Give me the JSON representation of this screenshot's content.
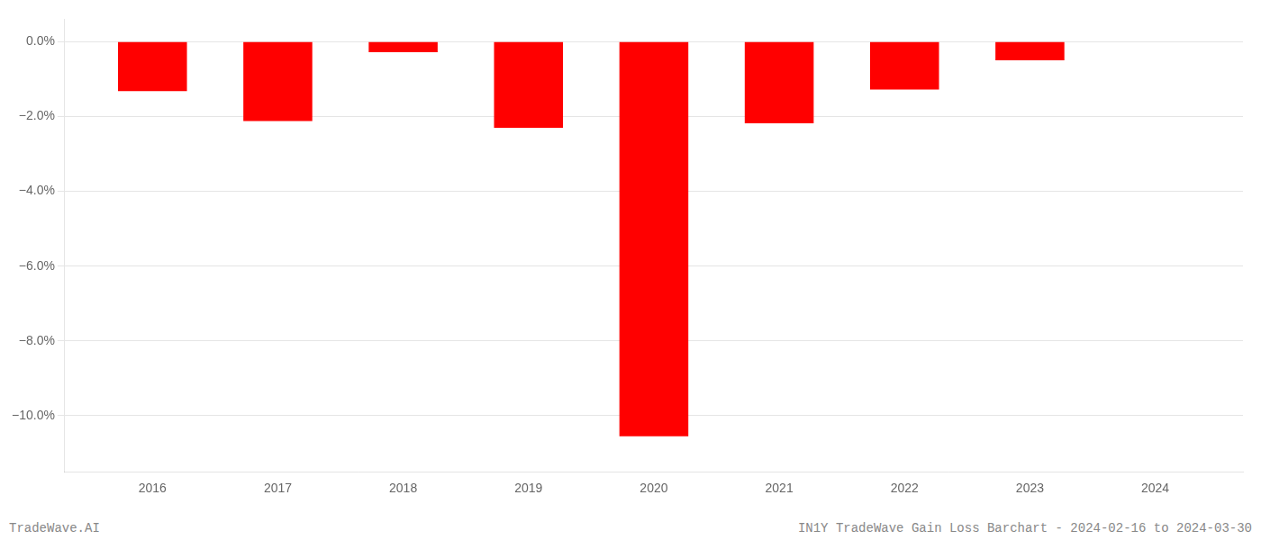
{
  "chart_data": {
    "type": "bar",
    "x": [
      2016,
      2017,
      2018,
      2019,
      2020,
      2021,
      2022,
      2023
    ],
    "values": [
      -1.32,
      -2.12,
      -0.28,
      -2.3,
      -10.55,
      -2.18,
      -1.28,
      -0.5
    ],
    "color": "#ff0000",
    "xlim": [
      2015.3,
      2024.7
    ],
    "xticks": [
      2016,
      2017,
      2018,
      2019,
      2020,
      2021,
      2022,
      2023,
      2024
    ],
    "ylim": [
      -11.5,
      0.6
    ],
    "yticks": [
      {
        "value": 0.0,
        "label": "0.0%"
      },
      {
        "value": -2.0,
        "label": "−2.0%"
      },
      {
        "value": -4.0,
        "label": "−4.0%"
      },
      {
        "value": -6.0,
        "label": "−6.0%"
      },
      {
        "value": -8.0,
        "label": "−8.0%"
      },
      {
        "value": -10.0,
        "label": "−10.0%"
      }
    ],
    "grid": true,
    "annotations": [
      "TradeWave.AI",
      "IN1Y TradeWave Gain Loss Barchart - 2024-02-16 to 2024-03-30"
    ]
  }
}
